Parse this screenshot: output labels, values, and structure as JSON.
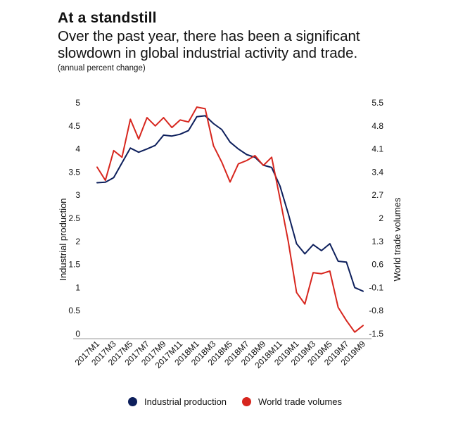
{
  "header": {
    "title": "At a standstill",
    "subtitle": "Over the past year, there has been a significant slowdown in global industrial activity and trade.",
    "unit": "(annual percent change)"
  },
  "colors": {
    "industrial": "#0d1f5c",
    "trade": "#d7261e"
  },
  "chart_data": {
    "type": "line",
    "title": "At a standstill",
    "ylabel_left": "Industrial production",
    "ylabel_right": "World trade volumes",
    "x": [
      "2017M1",
      "2017M2",
      "2017M3",
      "2017M4",
      "2017M5",
      "2017M6",
      "2017M7",
      "2017M8",
      "2017M9",
      "2017M10",
      "2017M11",
      "2017M12",
      "2018M1",
      "2018M2",
      "2018M3",
      "2018M4",
      "2018M5",
      "2018M6",
      "2018M7",
      "2018M8",
      "2018M9",
      "2018M10",
      "2018M11",
      "2018M12",
      "2019M1",
      "2019M2",
      "2019M3",
      "2019M4",
      "2019M5",
      "2019M6",
      "2019M7",
      "2019M8",
      "2019M9"
    ],
    "xtick_labels": [
      "2017M1",
      "2017M3",
      "2017M5",
      "2017M7",
      "2017M9",
      "2017M11",
      "2018M1",
      "2018M3",
      "2018M5",
      "2018M7",
      "2018M9",
      "2018M11",
      "2019M1",
      "2019M3",
      "2019M5",
      "2019M7",
      "2019M9"
    ],
    "left_axis": {
      "ylim": [
        0,
        5
      ],
      "ticks": [
        "0",
        "0.5",
        "1",
        "1.5",
        "2",
        "2.5",
        "3",
        "3.5",
        "4",
        "4.5",
        "5"
      ]
    },
    "right_axis": {
      "ylim": [
        -1.5,
        5.5
      ],
      "ticks": [
        "-1.5",
        "-0.8",
        "-0.1",
        "0.6",
        "1.3",
        "2",
        "2.7",
        "3.4",
        "4.1",
        "4.8",
        "5.5"
      ]
    },
    "series": [
      {
        "name": "Industrial production",
        "axis": "left",
        "values": [
          3.27,
          3.28,
          3.38,
          3.7,
          4.02,
          3.93,
          4.0,
          4.08,
          4.3,
          4.28,
          4.32,
          4.4,
          4.7,
          4.72,
          4.55,
          4.42,
          4.15,
          4.0,
          3.88,
          3.82,
          3.65,
          3.6,
          3.2,
          2.6,
          1.95,
          1.73,
          1.93,
          1.8,
          1.95,
          1.57,
          1.55,
          1.0,
          0.92
        ]
      },
      {
        "name": "World trade volumes",
        "axis": "right",
        "values": [
          3.55,
          3.15,
          4.05,
          3.85,
          5.0,
          4.4,
          5.05,
          4.8,
          5.05,
          4.75,
          4.98,
          4.92,
          5.37,
          5.32,
          4.2,
          3.7,
          3.1,
          3.65,
          3.75,
          3.9,
          3.6,
          3.85,
          2.6,
          1.3,
          -0.25,
          -0.6,
          0.35,
          0.32,
          0.4,
          -0.7,
          -1.1,
          -1.45,
          -1.25
        ]
      }
    ]
  }
}
